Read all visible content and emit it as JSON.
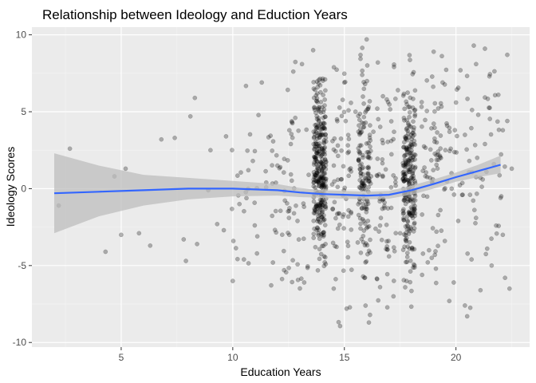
{
  "chart_data": {
    "type": "scatter",
    "title": "Relationship between Ideology and Eduction Years",
    "xlabel": "Education Years",
    "ylabel": "Ideology Scores",
    "xlim": [
      1.0,
      23.3
    ],
    "ylim": [
      -10.3,
      10.5
    ],
    "x_ticks": [
      5,
      10,
      15,
      20
    ],
    "y_ticks": [
      -10,
      -5,
      0,
      5,
      10
    ],
    "x_tick_labels": [
      "5",
      "10",
      "15",
      "20"
    ],
    "y_tick_labels": [
      "-10",
      "-5",
      "0",
      "5",
      "10"
    ],
    "grid": true,
    "legend": "none",
    "colors": {
      "panel": "#ebebeb",
      "grid_major": "#ffffff",
      "point": "#000000",
      "point_alpha": 0.28,
      "smooth_line": "#3366ff",
      "ribbon": "#bdbdbd",
      "ribbon_alpha": 0.75
    },
    "points": [
      [
        2.2,
        -1.1
      ],
      [
        2.7,
        2.6
      ],
      [
        4.3,
        -4.1
      ],
      [
        4.7,
        0.8
      ],
      [
        5.2,
        1.3
      ],
      [
        5.0,
        -3.0
      ],
      [
        5.8,
        -2.9
      ],
      [
        6.3,
        -3.7
      ],
      [
        6.8,
        3.2
      ],
      [
        7.4,
        3.3
      ],
      [
        7.8,
        -3.3
      ],
      [
        7.9,
        -4.7
      ],
      [
        8.1,
        4.7
      ],
      [
        8.3,
        5.9
      ],
      [
        8.4,
        -3.6
      ],
      [
        8.9,
        -0.1
      ],
      [
        9.0,
        2.5
      ],
      [
        9.3,
        -2.3
      ],
      [
        9.6,
        -2.7
      ],
      [
        9.7,
        3.4
      ],
      [
        10.0,
        -6.0
      ],
      [
        10.3,
        -1.0
      ],
      [
        10.5,
        -4.6
      ],
      [
        10.7,
        1.2
      ],
      [
        10.9,
        1.8
      ],
      [
        11.1,
        -3.1
      ],
      [
        11.3,
        6.9
      ],
      [
        11.5,
        0.4
      ],
      [
        11.8,
        -4.8
      ],
      [
        12.0,
        1.5
      ],
      [
        12.3,
        -5.3
      ],
      [
        12.6,
        2.9
      ],
      [
        12.8,
        4.6
      ],
      [
        12.9,
        -2.1
      ],
      [
        13.1,
        8.1
      ],
      [
        13.2,
        -6.1
      ],
      [
        13.4,
        0.9
      ],
      [
        13.6,
        9.0
      ],
      [
        13.7,
        -3.8
      ],
      [
        13.8,
        6.6
      ],
      [
        15.0,
        6.9
      ],
      [
        15.1,
        -7.8
      ],
      [
        15.2,
        2.4
      ],
      [
        15.3,
        -1.6
      ],
      [
        15.5,
        5.0
      ],
      [
        15.6,
        -3.5
      ],
      [
        15.8,
        7.4
      ],
      [
        15.9,
        -5.8
      ],
      [
        16.0,
        9.7
      ],
      [
        16.1,
        -8.7
      ],
      [
        16.2,
        0.8
      ],
      [
        16.3,
        3.7
      ],
      [
        16.4,
        -2.6
      ],
      [
        16.5,
        8.2
      ],
      [
        16.6,
        -6.4
      ],
      [
        16.7,
        1.9
      ],
      [
        16.8,
        -0.9
      ],
      [
        16.9,
        5.8
      ],
      [
        17.0,
        -4.4
      ],
      [
        17.1,
        3.1
      ],
      [
        17.2,
        -7.0
      ],
      [
        17.3,
        0.2
      ],
      [
        17.4,
        6.4
      ],
      [
        17.5,
        -2.9
      ],
      [
        19.0,
        8.9
      ],
      [
        19.1,
        -5.2
      ],
      [
        19.2,
        2.2
      ],
      [
        19.3,
        -1.4
      ],
      [
        19.4,
        6.9
      ],
      [
        19.5,
        -3.4
      ],
      [
        19.6,
        4.1
      ],
      [
        19.7,
        -7.3
      ],
      [
        19.8,
        1.0
      ],
      [
        19.9,
        -6.1
      ],
      [
        20.0,
        5.6
      ],
      [
        20.1,
        -2.1
      ],
      [
        20.2,
        7.7
      ],
      [
        20.3,
        -0.4
      ],
      [
        20.4,
        3.5
      ],
      [
        20.5,
        -8.3
      ],
      [
        20.6,
        1.8
      ],
      [
        20.7,
        -4.6
      ],
      [
        20.8,
        9.3
      ],
      [
        20.9,
        -1.9
      ],
      [
        21.0,
        4.8
      ],
      [
        21.1,
        -6.6
      ],
      [
        21.2,
        0.6
      ],
      [
        21.3,
        2.9
      ],
      [
        21.4,
        -3.9
      ],
      [
        21.5,
        7.3
      ],
      [
        21.6,
        -5.0
      ],
      [
        21.7,
        1.6
      ],
      [
        21.8,
        -2.4
      ],
      [
        21.9,
        6.1
      ],
      [
        22.0,
        -0.6
      ],
      [
        22.1,
        3.8
      ],
      [
        22.2,
        -5.8
      ],
      [
        22.3,
        8.7
      ],
      [
        22.4,
        -6.5
      ],
      [
        22.5,
        1.3
      ],
      [
        22.3,
        4.4
      ],
      [
        22.1,
        -3.0
      ],
      [
        21.3,
        9.1
      ],
      [
        20.4,
        -7.6
      ]
    ],
    "cluster_spec": [
      {
        "x": 13.9,
        "xw": 0.28,
        "n": 330,
        "ymin": -8.9,
        "ymax": 7.2,
        "core": 1.2,
        "sd": 2.7
      },
      {
        "x": 14.9,
        "xw": 0.45,
        "n": 70,
        "ymin": -9.0,
        "ymax": 8.0,
        "core": 0.0,
        "sd": 3.6
      },
      {
        "x": 15.9,
        "xw": 0.28,
        "n": 150,
        "ymin": -8.3,
        "ymax": 9.6,
        "core": 0.5,
        "sd": 3.4
      },
      {
        "x": 16.9,
        "xw": 0.45,
        "n": 60,
        "ymin": -8.0,
        "ymax": 8.5,
        "core": 0.0,
        "sd": 3.8
      },
      {
        "x": 17.9,
        "xw": 0.28,
        "n": 260,
        "ymin": -8.0,
        "ymax": 9.5,
        "core": 0.3,
        "sd": 3.0
      },
      {
        "x": 18.9,
        "xw": 0.45,
        "n": 55,
        "ymin": -7.5,
        "ymax": 9.0,
        "core": 0.5,
        "sd": 3.8
      },
      {
        "x": 12.5,
        "xw": 0.9,
        "n": 60,
        "ymin": -6.5,
        "ymax": 9.0,
        "core": 0.0,
        "sd": 3.5
      },
      {
        "x": 20.6,
        "xw": 1.6,
        "n": 70,
        "ymin": -8.0,
        "ymax": 9.3,
        "core": 0.8,
        "sd": 3.8
      },
      {
        "x": 10.8,
        "xw": 0.9,
        "n": 25,
        "ymin": -6.5,
        "ymax": 7.0,
        "core": 0.0,
        "sd": 3.0
      }
    ],
    "smooth": {
      "x": [
        2.0,
        4.0,
        6.0,
        8.0,
        10.0,
        12.0,
        13.0,
        14.0,
        15.0,
        16.0,
        17.0,
        18.0,
        19.0,
        20.0,
        21.0,
        22.0
      ],
      "y": [
        -0.3,
        -0.2,
        -0.1,
        0.0,
        0.0,
        -0.1,
        -0.25,
        -0.35,
        -0.4,
        -0.45,
        -0.4,
        -0.1,
        0.3,
        0.75,
        1.15,
        1.55
      ],
      "lower": [
        -2.9,
        -1.8,
        -1.1,
        -0.7,
        -0.5,
        -0.45,
        -0.55,
        -0.6,
        -0.65,
        -0.7,
        -0.65,
        -0.4,
        0.0,
        0.45,
        0.75,
        1.0
      ],
      "upper": [
        2.3,
        1.5,
        0.9,
        0.7,
        0.5,
        0.3,
        0.05,
        -0.1,
        -0.15,
        -0.2,
        -0.15,
        0.2,
        0.6,
        1.05,
        1.55,
        2.15
      ]
    }
  }
}
